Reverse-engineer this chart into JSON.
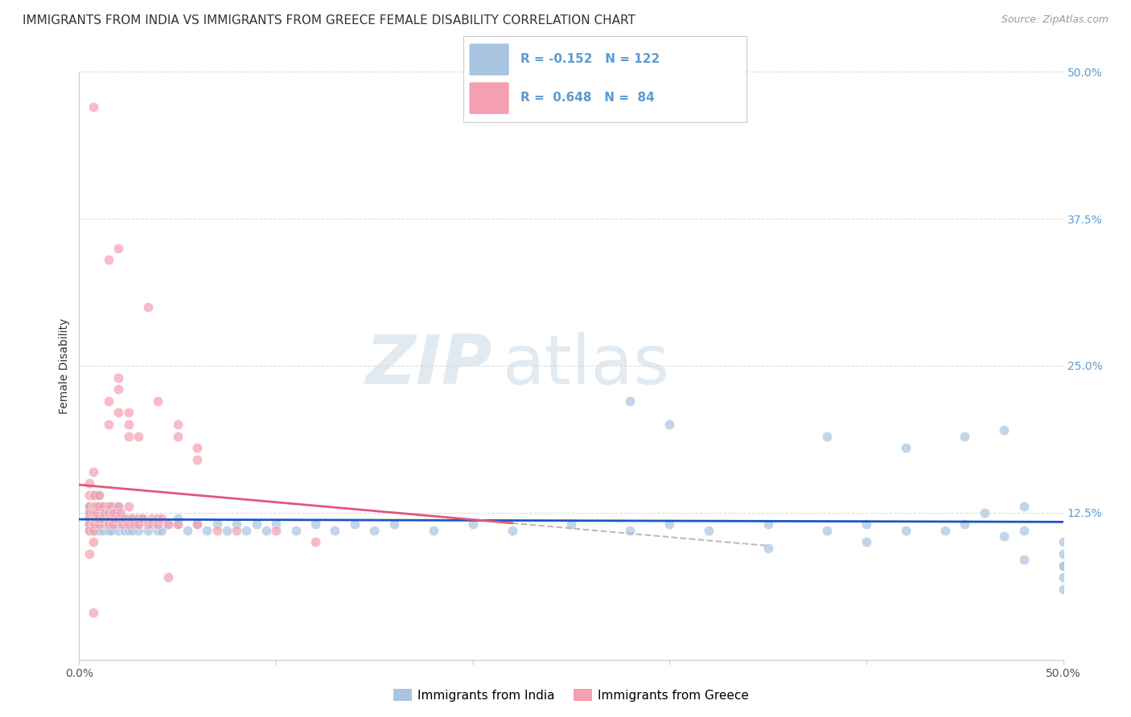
{
  "title": "IMMIGRANTS FROM INDIA VS IMMIGRANTS FROM GREECE FEMALE DISABILITY CORRELATION CHART",
  "source": "Source: ZipAtlas.com",
  "ylabel": "Female Disability",
  "y_ticks": [
    0.0,
    0.125,
    0.25,
    0.375,
    0.5
  ],
  "y_tick_labels": [
    "",
    "12.5%",
    "25.0%",
    "37.5%",
    "50.0%"
  ],
  "x_range": [
    0.0,
    0.5
  ],
  "y_range": [
    0.0,
    0.5
  ],
  "india_R": -0.152,
  "india_N": 122,
  "greece_R": 0.648,
  "greece_N": 84,
  "india_color": "#a8c4e0",
  "greece_color": "#f4a0b0",
  "india_line_color": "#1a56c4",
  "greece_line_color": "#e05878",
  "legend_india_label": "Immigrants from India",
  "legend_greece_label": "Immigrants from Greece",
  "india_scatter_x": [
    0.005,
    0.005,
    0.005,
    0.005,
    0.005,
    0.005,
    0.005,
    0.007,
    0.007,
    0.007,
    0.007,
    0.007,
    0.007,
    0.008,
    0.008,
    0.008,
    0.008,
    0.008,
    0.009,
    0.009,
    0.009,
    0.009,
    0.01,
    0.01,
    0.01,
    0.01,
    0.01,
    0.01,
    0.01,
    0.01,
    0.012,
    0.012,
    0.012,
    0.012,
    0.012,
    0.013,
    0.013,
    0.013,
    0.015,
    0.015,
    0.015,
    0.015,
    0.015,
    0.015,
    0.016,
    0.016,
    0.016,
    0.017,
    0.017,
    0.018,
    0.018,
    0.019,
    0.02,
    0.02,
    0.02,
    0.021,
    0.022,
    0.023,
    0.025,
    0.025,
    0.025,
    0.027,
    0.028,
    0.03,
    0.03,
    0.032,
    0.035,
    0.037,
    0.04,
    0.04,
    0.042,
    0.045,
    0.05,
    0.05,
    0.055,
    0.06,
    0.065,
    0.07,
    0.075,
    0.08,
    0.085,
    0.09,
    0.095,
    0.1,
    0.11,
    0.12,
    0.13,
    0.14,
    0.15,
    0.16,
    0.18,
    0.2,
    0.22,
    0.25,
    0.28,
    0.3,
    0.32,
    0.35,
    0.38,
    0.4,
    0.42,
    0.45,
    0.47,
    0.48,
    0.5,
    0.5,
    0.5,
    0.28,
    0.3,
    0.38,
    0.42,
    0.45,
    0.47,
    0.48,
    0.5,
    0.5,
    0.5,
    0.48,
    0.46,
    0.44,
    0.4,
    0.35
  ],
  "india_scatter_y": [
    0.115,
    0.125,
    0.13,
    0.12,
    0.11,
    0.13,
    0.115,
    0.12,
    0.115,
    0.125,
    0.11,
    0.13,
    0.12,
    0.115,
    0.125,
    0.12,
    0.13,
    0.11,
    0.12,
    0.115,
    0.125,
    0.13,
    0.13,
    0.14,
    0.12,
    0.115,
    0.125,
    0.11,
    0.13,
    0.12,
    0.12,
    0.115,
    0.13,
    0.125,
    0.11,
    0.12,
    0.115,
    0.13,
    0.115,
    0.125,
    0.12,
    0.13,
    0.11,
    0.12,
    0.115,
    0.125,
    0.11,
    0.12,
    0.13,
    0.115,
    0.12,
    0.125,
    0.12,
    0.11,
    0.13,
    0.115,
    0.12,
    0.11,
    0.12,
    0.11,
    0.115,
    0.11,
    0.12,
    0.115,
    0.11,
    0.12,
    0.11,
    0.115,
    0.11,
    0.115,
    0.11,
    0.115,
    0.115,
    0.12,
    0.11,
    0.115,
    0.11,
    0.115,
    0.11,
    0.115,
    0.11,
    0.115,
    0.11,
    0.115,
    0.11,
    0.115,
    0.11,
    0.115,
    0.11,
    0.115,
    0.11,
    0.115,
    0.11,
    0.115,
    0.11,
    0.115,
    0.11,
    0.115,
    0.11,
    0.115,
    0.11,
    0.115,
    0.105,
    0.11,
    0.08,
    0.09,
    0.1,
    0.22,
    0.2,
    0.19,
    0.18,
    0.19,
    0.195,
    0.085,
    0.06,
    0.07,
    0.08,
    0.13,
    0.125,
    0.11,
    0.1,
    0.095
  ],
  "greece_scatter_x": [
    0.005,
    0.005,
    0.005,
    0.005,
    0.005,
    0.005,
    0.005,
    0.005,
    0.007,
    0.007,
    0.007,
    0.007,
    0.007,
    0.007,
    0.007,
    0.008,
    0.008,
    0.008,
    0.008,
    0.009,
    0.009,
    0.009,
    0.01,
    0.01,
    0.01,
    0.01,
    0.012,
    0.012,
    0.013,
    0.015,
    0.015,
    0.015,
    0.015,
    0.016,
    0.016,
    0.017,
    0.017,
    0.018,
    0.018,
    0.02,
    0.02,
    0.021,
    0.022,
    0.023,
    0.025,
    0.025,
    0.027,
    0.028,
    0.03,
    0.03,
    0.032,
    0.035,
    0.037,
    0.04,
    0.04,
    0.042,
    0.045,
    0.05,
    0.06,
    0.07,
    0.08,
    0.1,
    0.12,
    0.015,
    0.015,
    0.02,
    0.02,
    0.02,
    0.025,
    0.025,
    0.025,
    0.03,
    0.04,
    0.05,
    0.05,
    0.06,
    0.06,
    0.015,
    0.02,
    0.035,
    0.045,
    0.007,
    0.007,
    0.007
  ],
  "greece_scatter_y": [
    0.13,
    0.12,
    0.115,
    0.11,
    0.125,
    0.14,
    0.15,
    0.09,
    0.12,
    0.115,
    0.11,
    0.13,
    0.125,
    0.14,
    0.1,
    0.13,
    0.12,
    0.115,
    0.14,
    0.13,
    0.12,
    0.125,
    0.13,
    0.115,
    0.14,
    0.12,
    0.13,
    0.12,
    0.125,
    0.13,
    0.12,
    0.115,
    0.125,
    0.13,
    0.12,
    0.125,
    0.115,
    0.12,
    0.125,
    0.13,
    0.12,
    0.125,
    0.115,
    0.12,
    0.13,
    0.115,
    0.12,
    0.115,
    0.12,
    0.115,
    0.12,
    0.115,
    0.12,
    0.115,
    0.12,
    0.12,
    0.115,
    0.115,
    0.115,
    0.11,
    0.11,
    0.11,
    0.1,
    0.22,
    0.2,
    0.24,
    0.21,
    0.23,
    0.2,
    0.19,
    0.21,
    0.19,
    0.22,
    0.2,
    0.19,
    0.18,
    0.17,
    0.34,
    0.35,
    0.3,
    0.07,
    0.47,
    0.16,
    0.04
  ],
  "background_color": "#ffffff",
  "grid_color": "#dddddd",
  "watermark_text": "ZIPatlas",
  "title_fontsize": 11,
  "axis_label_fontsize": 10,
  "tick_fontsize": 10,
  "legend_fontsize": 11
}
